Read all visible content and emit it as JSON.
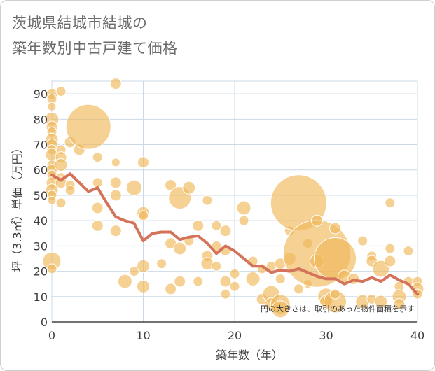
{
  "title_line1": "茨城県結城市結城の",
  "title_line2": "築年数別中古戸建て価格",
  "chart_data": {
    "type": "scatter",
    "xlabel": "築年数（年）",
    "ylabel": "坪（3.3㎡）単価（万円）",
    "xlim": [
      0,
      40
    ],
    "ylim": [
      0,
      95
    ],
    "xticks": [
      0,
      10,
      20,
      30,
      40
    ],
    "yticks": [
      0,
      10,
      20,
      30,
      40,
      50,
      60,
      70,
      80,
      90
    ],
    "grid": true,
    "note": "円の大きさは、取引のあった物件面積を示す",
    "colors": {
      "bubble": "#f0b85a",
      "line": "#d4735a",
      "grid": "#c9d9e8"
    },
    "points": [
      [
        0,
        90,
        8
      ],
      [
        0,
        88,
        7
      ],
      [
        0,
        85,
        6
      ],
      [
        0,
        80,
        10
      ],
      [
        0,
        77,
        8
      ],
      [
        0,
        75,
        7
      ],
      [
        0,
        72,
        9
      ],
      [
        0,
        70,
        8
      ],
      [
        0,
        68,
        7
      ],
      [
        0,
        66,
        9
      ],
      [
        0,
        62,
        7
      ],
      [
        0,
        60,
        8
      ],
      [
        0,
        58,
        7
      ],
      [
        0,
        55,
        8
      ],
      [
        0,
        52,
        9
      ],
      [
        0,
        50,
        7
      ],
      [
        0,
        48,
        6
      ],
      [
        0,
        24,
        13
      ],
      [
        0,
        21,
        7
      ],
      [
        1,
        91,
        7
      ],
      [
        1,
        68,
        7
      ],
      [
        1,
        65,
        8
      ],
      [
        1,
        62,
        9
      ],
      [
        1,
        57,
        7
      ],
      [
        1,
        55,
        8
      ],
      [
        1,
        47,
        7
      ],
      [
        2,
        71,
        8
      ],
      [
        2,
        54,
        7
      ],
      [
        2,
        52,
        7
      ],
      [
        3,
        68,
        8
      ],
      [
        4,
        77,
        32
      ],
      [
        5,
        65,
        7
      ],
      [
        5,
        55,
        7
      ],
      [
        5,
        45,
        8
      ],
      [
        5,
        38,
        8
      ],
      [
        7,
        94,
        8
      ],
      [
        7,
        63,
        6
      ],
      [
        7,
        55,
        8
      ],
      [
        7,
        50,
        8
      ],
      [
        7,
        36,
        8
      ],
      [
        8,
        16,
        10
      ],
      [
        9,
        53,
        11
      ],
      [
        9,
        20,
        7
      ],
      [
        10,
        63,
        8
      ],
      [
        10,
        43,
        9
      ],
      [
        10,
        42,
        7
      ],
      [
        10,
        22,
        9
      ],
      [
        10,
        14,
        9
      ],
      [
        12,
        23,
        7
      ],
      [
        13,
        54,
        8
      ],
      [
        13,
        31,
        8
      ],
      [
        13,
        13,
        8
      ],
      [
        14,
        49,
        16
      ],
      [
        14,
        29,
        9
      ],
      [
        14,
        16,
        8
      ],
      [
        15,
        53,
        9
      ],
      [
        15,
        32,
        7
      ],
      [
        16,
        38,
        8
      ],
      [
        16,
        16,
        7
      ],
      [
        17,
        48,
        7
      ],
      [
        17,
        26,
        8
      ],
      [
        17,
        23,
        9
      ],
      [
        18,
        38,
        7
      ],
      [
        18,
        30,
        7
      ],
      [
        18,
        22,
        7
      ],
      [
        19,
        36,
        8
      ],
      [
        19,
        28,
        7
      ],
      [
        19,
        16,
        8
      ],
      [
        19,
        11,
        7
      ],
      [
        20,
        19,
        7
      ],
      [
        20,
        14,
        7
      ],
      [
        21,
        45,
        10
      ],
      [
        21,
        40,
        7
      ],
      [
        22,
        17,
        10
      ],
      [
        22,
        24,
        7
      ],
      [
        23,
        9,
        8
      ],
      [
        23,
        21,
        7
      ],
      [
        24,
        22,
        7
      ],
      [
        24,
        11,
        12
      ],
      [
        24,
        7,
        9
      ],
      [
        25,
        23,
        8
      ],
      [
        25,
        17,
        7
      ],
      [
        25,
        7,
        14
      ],
      [
        25,
        5,
        12
      ],
      [
        26,
        25,
        9
      ],
      [
        26,
        36,
        7
      ],
      [
        27,
        47,
        40
      ],
      [
        27,
        13,
        7
      ],
      [
        28,
        31,
        7
      ],
      [
        28,
        15,
        6
      ],
      [
        29,
        27,
        48
      ],
      [
        29,
        40,
        8
      ],
      [
        29,
        24,
        10
      ],
      [
        30,
        10,
        12
      ],
      [
        30,
        8,
        9
      ],
      [
        31,
        25,
        30
      ],
      [
        31,
        8,
        16
      ],
      [
        31,
        37,
        8
      ],
      [
        31,
        11,
        7
      ],
      [
        32,
        18,
        9
      ],
      [
        33,
        17,
        8
      ],
      [
        34,
        32,
        7
      ],
      [
        34,
        8,
        10
      ],
      [
        35,
        26,
        7
      ],
      [
        35,
        24,
        8
      ],
      [
        35,
        9,
        7
      ],
      [
        36,
        21,
        12
      ],
      [
        36,
        8,
        9
      ],
      [
        37,
        47,
        7
      ],
      [
        37,
        29,
        7
      ],
      [
        37,
        24,
        8
      ],
      [
        38,
        14,
        7
      ],
      [
        38,
        10,
        10
      ],
      [
        38,
        7,
        8
      ],
      [
        39,
        28,
        7
      ],
      [
        39,
        16,
        7
      ],
      [
        40,
        16,
        7
      ],
      [
        40,
        13,
        9
      ],
      [
        40,
        11,
        7
      ]
    ],
    "trend_x": [
      0,
      1,
      2,
      3,
      4,
      5,
      6,
      7,
      8,
      9,
      10,
      11,
      12,
      13,
      14,
      15,
      16,
      17,
      18,
      19,
      20,
      21,
      22,
      23,
      24,
      25,
      26,
      27,
      28,
      29,
      30,
      31,
      32,
      33,
      34,
      35,
      36,
      37,
      38,
      39,
      40
    ],
    "trend_y": [
      58,
      56,
      58.5,
      55,
      51.5,
      53,
      47,
      41.5,
      40,
      39,
      32,
      35,
      35.5,
      35.5,
      32.5,
      33.5,
      34,
      31,
      27,
      30,
      28,
      25,
      22,
      22,
      19.5,
      20.5,
      20,
      21,
      19.5,
      18,
      17,
      17,
      15,
      16.5,
      16,
      17.5,
      16,
      18.5,
      16.5,
      15,
      11
    ]
  }
}
